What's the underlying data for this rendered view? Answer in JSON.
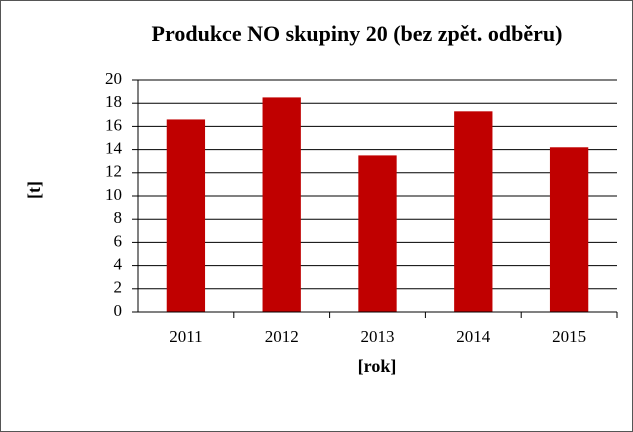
{
  "chart_data": {
    "type": "bar",
    "title": "Produkce NO skupiny 20 (bez zpět. odběru)",
    "x_label": "[rok]",
    "y_label": "[t]",
    "categories": [
      "2011",
      "2012",
      "2013",
      "2014",
      "2015"
    ],
    "values": [
      16.6,
      18.5,
      13.5,
      17.3,
      14.2
    ],
    "color": "#c00000",
    "ylim": [
      0,
      20
    ],
    "yticks": [
      0,
      2,
      4,
      6,
      8,
      10,
      12,
      14,
      16,
      18,
      20
    ],
    "grid": true
  }
}
